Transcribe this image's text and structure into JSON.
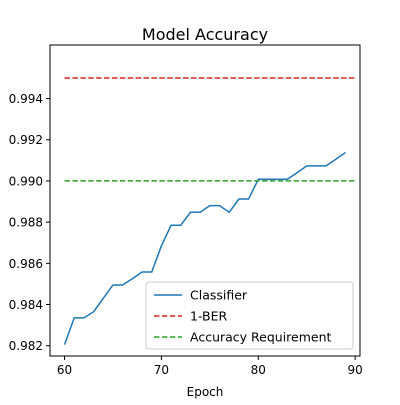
{
  "colors": {
    "background": "#ffffff",
    "axis": "#000000",
    "classifier": "#1f77b4",
    "ber": "#d62728",
    "requirement": "#2ca02c",
    "legend_border": "#cccccc"
  },
  "chart_data": {
    "type": "line",
    "title": "Model Accuracy",
    "xlabel": "Epoch",
    "ylabel": "",
    "xlim": [
      58.5,
      90.5
    ],
    "ylim": [
      0.9815,
      0.9966
    ],
    "xticks": [
      60,
      70,
      80,
      90
    ],
    "xtick_labels": [
      "60",
      "70",
      "80",
      "90"
    ],
    "yticks": [
      0.982,
      0.984,
      0.986,
      0.988,
      0.99,
      0.992,
      0.994
    ],
    "ytick_labels": [
      "0.982",
      "0.984",
      "0.986",
      "0.988",
      "0.990",
      "0.992",
      "0.994"
    ],
    "grid": false,
    "legend_position": "lower-right",
    "series": [
      {
        "name": "Classifier",
        "style": "solid",
        "color": "#1f77b4",
        "x": [
          60,
          61,
          62,
          63,
          64,
          65,
          66,
          67,
          68,
          69,
          70,
          71,
          72,
          73,
          74,
          75,
          76,
          77,
          78,
          79,
          80,
          81,
          82,
          83,
          84,
          85,
          86,
          87,
          88,
          89
        ],
        "y": [
          0.98205,
          0.98335,
          0.98335,
          0.98365,
          0.9843,
          0.98495,
          0.98495,
          0.98525,
          0.98558,
          0.98558,
          0.98685,
          0.98785,
          0.98785,
          0.98848,
          0.98848,
          0.9888,
          0.9888,
          0.98848,
          0.98912,
          0.98912,
          0.99008,
          0.99008,
          0.99008,
          0.99008,
          0.9904,
          0.99073,
          0.99073,
          0.99073,
          0.99105,
          0.99138
        ]
      },
      {
        "name": "1-BER",
        "style": "dashed",
        "color": "#d62728",
        "x": [
          60,
          90
        ],
        "y": [
          0.995,
          0.995
        ]
      },
      {
        "name": "Accuracy Requirement",
        "style": "dashed",
        "color": "#2ca02c",
        "x": [
          60,
          90
        ],
        "y": [
          0.99,
          0.99
        ]
      }
    ]
  }
}
